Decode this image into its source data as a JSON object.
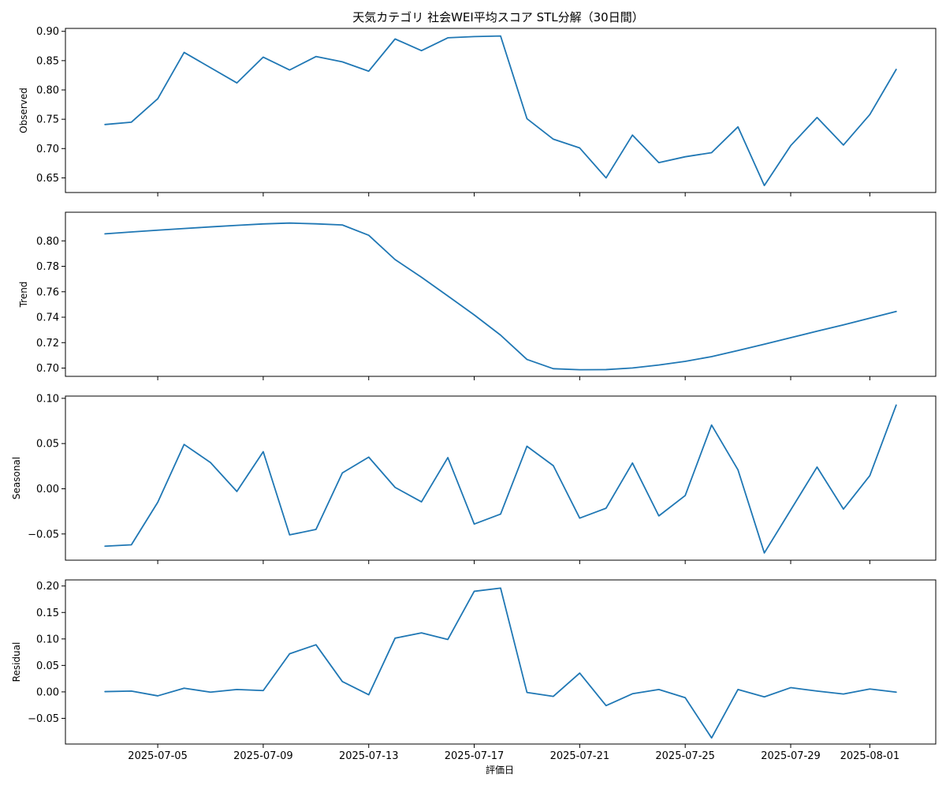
{
  "title": "天気カテゴリ 社会WEI平均スコア STL分解（30日間）",
  "xlabel": "評価日",
  "x_tick_labels": [
    "2025-07-05",
    "2025-07-09",
    "2025-07-13",
    "2025-07-17",
    "2025-07-21",
    "2025-07-25",
    "2025-07-29",
    "2025-08-01"
  ],
  "chart_data": [
    {
      "type": "line",
      "ylabel": "Observed",
      "ylim": [
        0.625,
        0.905
      ],
      "yticks": [
        0.65,
        0.7,
        0.75,
        0.8,
        0.85,
        0.9
      ],
      "ytick_labels": [
        "0.65",
        "0.70",
        "0.75",
        "0.80",
        "0.85",
        "0.90"
      ],
      "color": "#1f77b4",
      "x": [
        "2025-07-03",
        "2025-07-04",
        "2025-07-05",
        "2025-07-06",
        "2025-07-07",
        "2025-07-08",
        "2025-07-09",
        "2025-07-10",
        "2025-07-11",
        "2025-07-12",
        "2025-07-13",
        "2025-07-14",
        "2025-07-15",
        "2025-07-16",
        "2025-07-17",
        "2025-07-18",
        "2025-07-19",
        "2025-07-20",
        "2025-07-21",
        "2025-07-22",
        "2025-07-23",
        "2025-07-24",
        "2025-07-25",
        "2025-07-26",
        "2025-07-27",
        "2025-07-28",
        "2025-07-29",
        "2025-07-30",
        "2025-07-31",
        "2025-08-01",
        "2025-08-02"
      ],
      "values": [
        0.741,
        0.745,
        0.785,
        0.864,
        0.838,
        0.812,
        0.856,
        0.834,
        0.857,
        0.848,
        0.832,
        0.887,
        0.867,
        0.889,
        0.891,
        0.892,
        0.751,
        0.716,
        0.701,
        0.65,
        0.723,
        0.676,
        0.686,
        0.693,
        0.737,
        0.637,
        0.705,
        0.753,
        0.706,
        0.758,
        0.835
      ]
    },
    {
      "type": "line",
      "ylabel": "Trend",
      "ylim": [
        0.6935,
        0.8225
      ],
      "yticks": [
        0.7,
        0.72,
        0.74,
        0.76,
        0.78,
        0.8
      ],
      "ytick_labels": [
        "0.70",
        "0.72",
        "0.74",
        "0.76",
        "0.78",
        "0.80"
      ],
      "color": "#1f77b4",
      "x": [
        "2025-07-03",
        "2025-07-04",
        "2025-07-05",
        "2025-07-06",
        "2025-07-07",
        "2025-07-08",
        "2025-07-09",
        "2025-07-10",
        "2025-07-11",
        "2025-07-12",
        "2025-07-13",
        "2025-07-14",
        "2025-07-15",
        "2025-07-16",
        "2025-07-17",
        "2025-07-18",
        "2025-07-19",
        "2025-07-20",
        "2025-07-21",
        "2025-07-22",
        "2025-07-23",
        "2025-07-24",
        "2025-07-25",
        "2025-07-26",
        "2025-07-27",
        "2025-07-28",
        "2025-07-29",
        "2025-07-30",
        "2025-07-31",
        "2025-08-01",
        "2025-08-02"
      ],
      "values": [
        0.8055,
        0.807,
        0.8084,
        0.8097,
        0.811,
        0.8122,
        0.8133,
        0.814,
        0.8134,
        0.8125,
        0.8044,
        0.7853,
        0.7714,
        0.7567,
        0.7418,
        0.7259,
        0.7068,
        0.6995,
        0.6987,
        0.6988,
        0.7001,
        0.7024,
        0.7053,
        0.709,
        0.7138,
        0.7188,
        0.7239,
        0.729,
        0.734,
        0.7392,
        0.7445
      ]
    },
    {
      "type": "line",
      "ylabel": "Seasonal",
      "ylim": [
        -0.079,
        0.1025
      ],
      "yticks": [
        -0.05,
        0.0,
        0.05,
        0.1
      ],
      "ytick_labels": [
        "−0.05",
        "0.00",
        "0.05",
        "0.10"
      ],
      "color": "#1f77b4",
      "x": [
        "2025-07-03",
        "2025-07-04",
        "2025-07-05",
        "2025-07-06",
        "2025-07-07",
        "2025-07-08",
        "2025-07-09",
        "2025-07-10",
        "2025-07-11",
        "2025-07-12",
        "2025-07-13",
        "2025-07-14",
        "2025-07-15",
        "2025-07-16",
        "2025-07-17",
        "2025-07-18",
        "2025-07-19",
        "2025-07-20",
        "2025-07-21",
        "2025-07-22",
        "2025-07-23",
        "2025-07-24",
        "2025-07-25",
        "2025-07-26",
        "2025-07-27",
        "2025-07-28",
        "2025-07-29",
        "2025-07-30",
        "2025-07-31",
        "2025-08-01",
        "2025-08-02"
      ],
      "values": [
        -0.0635,
        -0.062,
        -0.015,
        0.049,
        0.029,
        -0.003,
        0.041,
        -0.051,
        -0.045,
        0.0175,
        0.035,
        0.0015,
        -0.0145,
        0.0345,
        -0.039,
        -0.028,
        0.047,
        0.0255,
        -0.0325,
        -0.0215,
        0.0285,
        -0.03,
        -0.0075,
        0.0705,
        0.021,
        -0.071,
        -0.0235,
        0.024,
        -0.0225,
        0.0145,
        0.0925
      ]
    },
    {
      "type": "line",
      "ylabel": "Residual",
      "ylim": [
        -0.0985,
        0.2115
      ],
      "yticks": [
        -0.05,
        0.0,
        0.05,
        0.1,
        0.15,
        0.2
      ],
      "ytick_labels": [
        "−0.05",
        "0.00",
        "0.05",
        "0.10",
        "0.15",
        "0.20"
      ],
      "color": "#1f77b4",
      "x": [
        "2025-07-03",
        "2025-07-04",
        "2025-07-05",
        "2025-07-06",
        "2025-07-07",
        "2025-07-08",
        "2025-07-09",
        "2025-07-10",
        "2025-07-11",
        "2025-07-12",
        "2025-07-13",
        "2025-07-14",
        "2025-07-15",
        "2025-07-16",
        "2025-07-17",
        "2025-07-18",
        "2025-07-19",
        "2025-07-20",
        "2025-07-21",
        "2025-07-22",
        "2025-07-23",
        "2025-07-24",
        "2025-07-25",
        "2025-07-26",
        "2025-07-27",
        "2025-07-28",
        "2025-07-29",
        "2025-07-30",
        "2025-07-31",
        "2025-08-01",
        "2025-08-02"
      ],
      "values": [
        0.0005,
        0.0015,
        -0.0075,
        0.007,
        -0.0005,
        0.0045,
        0.0025,
        0.072,
        0.089,
        0.0195,
        -0.0055,
        0.1015,
        0.1115,
        0.099,
        0.19,
        0.196,
        -0.001,
        -0.0085,
        0.0355,
        -0.026,
        -0.0035,
        0.0045,
        -0.011,
        -0.087,
        0.0045,
        -0.0095,
        0.008,
        0.0015,
        -0.004,
        0.0055,
        -0.0005
      ]
    }
  ]
}
